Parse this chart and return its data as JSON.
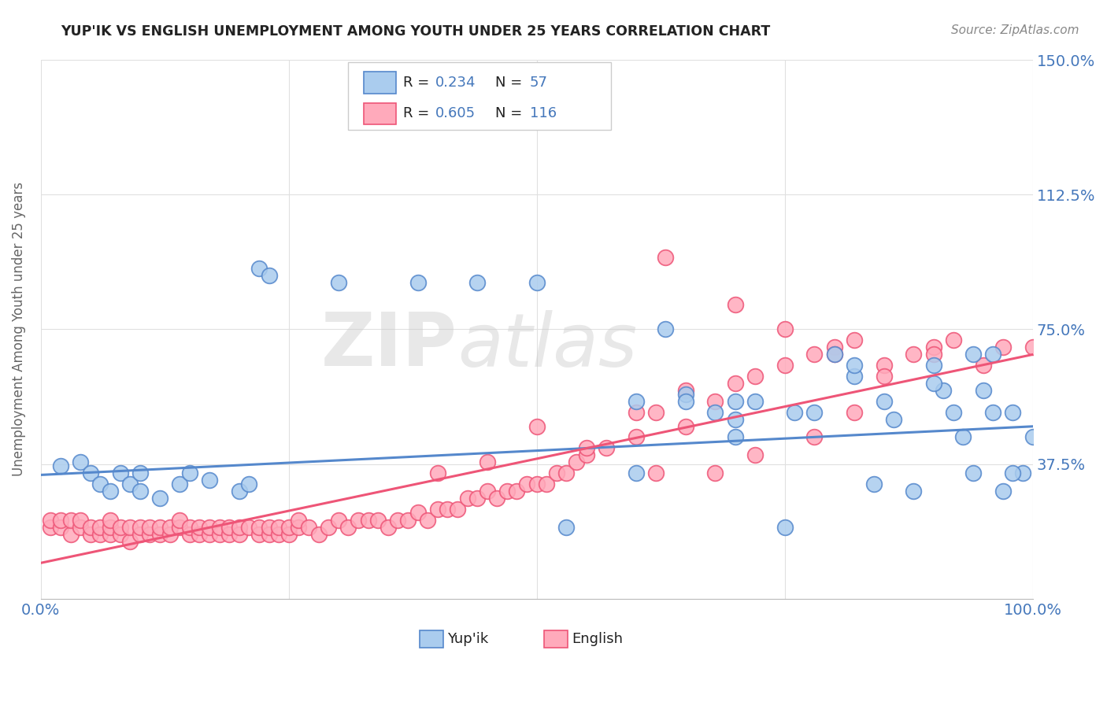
{
  "title": "YUP'IK VS ENGLISH UNEMPLOYMENT AMONG YOUTH UNDER 25 YEARS CORRELATION CHART",
  "source": "Source: ZipAtlas.com",
  "ylabel": "Unemployment Among Youth under 25 years",
  "xlim": [
    0.0,
    1.0
  ],
  "ylim": [
    0.0,
    1.5
  ],
  "xticks": [
    0.0,
    0.25,
    0.5,
    0.75,
    1.0
  ],
  "xtick_labels": [
    "0.0%",
    "",
    "",
    "",
    "100.0%"
  ],
  "ytick_labels": [
    "",
    "37.5%",
    "75.0%",
    "112.5%",
    "150.0%"
  ],
  "yticks": [
    0.0,
    0.375,
    0.75,
    1.125,
    1.5
  ],
  "blue_color": "#5588CC",
  "pink_color": "#EE5577",
  "blue_fill": "#AACCEE",
  "pink_fill": "#FFAABB",
  "legend_label_blue": "Yup'ik",
  "legend_label_pink": "English",
  "blue_R": "0.234",
  "blue_N": "57",
  "pink_R": "0.605",
  "pink_N": "116",
  "blue_scatter_x": [
    0.02,
    0.04,
    0.05,
    0.06,
    0.07,
    0.08,
    0.09,
    0.1,
    0.1,
    0.12,
    0.14,
    0.15,
    0.17,
    0.2,
    0.21,
    0.22,
    0.23,
    0.3,
    0.38,
    0.44,
    0.5,
    0.53,
    0.6,
    0.63,
    0.65,
    0.68,
    0.7,
    0.72,
    0.75,
    0.76,
    0.78,
    0.8,
    0.82,
    0.84,
    0.85,
    0.86,
    0.88,
    0.9,
    0.91,
    0.92,
    0.93,
    0.94,
    0.95,
    0.96,
    0.97,
    0.98,
    0.99,
    1.0,
    0.65,
    0.7,
    0.82,
    0.9,
    0.94,
    0.96,
    0.98,
    0.6,
    0.7
  ],
  "blue_scatter_y": [
    0.37,
    0.38,
    0.35,
    0.32,
    0.3,
    0.35,
    0.32,
    0.3,
    0.35,
    0.28,
    0.32,
    0.35,
    0.33,
    0.3,
    0.32,
    0.92,
    0.9,
    0.88,
    0.88,
    0.88,
    0.88,
    0.2,
    0.55,
    0.75,
    0.57,
    0.52,
    0.45,
    0.55,
    0.2,
    0.52,
    0.52,
    0.68,
    0.62,
    0.32,
    0.55,
    0.5,
    0.3,
    0.65,
    0.58,
    0.52,
    0.45,
    0.35,
    0.58,
    0.68,
    0.3,
    0.52,
    0.35,
    0.45,
    0.55,
    0.55,
    0.65,
    0.6,
    0.68,
    0.52,
    0.35,
    0.35,
    0.5
  ],
  "pink_scatter_x": [
    0.01,
    0.01,
    0.02,
    0.02,
    0.03,
    0.03,
    0.04,
    0.04,
    0.05,
    0.05,
    0.06,
    0.06,
    0.07,
    0.07,
    0.07,
    0.08,
    0.08,
    0.09,
    0.09,
    0.1,
    0.1,
    0.11,
    0.11,
    0.12,
    0.12,
    0.13,
    0.13,
    0.14,
    0.14,
    0.15,
    0.15,
    0.16,
    0.16,
    0.17,
    0.17,
    0.18,
    0.18,
    0.19,
    0.19,
    0.2,
    0.2,
    0.21,
    0.22,
    0.22,
    0.23,
    0.23,
    0.24,
    0.24,
    0.25,
    0.25,
    0.26,
    0.26,
    0.27,
    0.28,
    0.29,
    0.3,
    0.31,
    0.32,
    0.33,
    0.34,
    0.35,
    0.36,
    0.37,
    0.38,
    0.39,
    0.4,
    0.41,
    0.42,
    0.43,
    0.44,
    0.45,
    0.46,
    0.47,
    0.48,
    0.49,
    0.5,
    0.51,
    0.52,
    0.53,
    0.54,
    0.55,
    0.57,
    0.6,
    0.62,
    0.63,
    0.65,
    0.68,
    0.7,
    0.72,
    0.75,
    0.78,
    0.8,
    0.82,
    0.85,
    0.88,
    0.9,
    0.92,
    0.95,
    0.97,
    1.0,
    0.5,
    0.55,
    0.4,
    0.45,
    0.6,
    0.65,
    0.7,
    0.75,
    0.8,
    0.85,
    0.9,
    0.62,
    0.68,
    0.72,
    0.78,
    0.82
  ],
  "pink_scatter_y": [
    0.2,
    0.22,
    0.2,
    0.22,
    0.18,
    0.22,
    0.2,
    0.22,
    0.18,
    0.2,
    0.18,
    0.2,
    0.18,
    0.2,
    0.22,
    0.18,
    0.2,
    0.16,
    0.2,
    0.18,
    0.2,
    0.18,
    0.2,
    0.18,
    0.2,
    0.18,
    0.2,
    0.2,
    0.22,
    0.18,
    0.2,
    0.18,
    0.2,
    0.18,
    0.2,
    0.18,
    0.2,
    0.18,
    0.2,
    0.18,
    0.2,
    0.2,
    0.18,
    0.2,
    0.18,
    0.2,
    0.18,
    0.2,
    0.18,
    0.2,
    0.2,
    0.22,
    0.2,
    0.18,
    0.2,
    0.22,
    0.2,
    0.22,
    0.22,
    0.22,
    0.2,
    0.22,
    0.22,
    0.24,
    0.22,
    0.25,
    0.25,
    0.25,
    0.28,
    0.28,
    0.3,
    0.28,
    0.3,
    0.3,
    0.32,
    0.32,
    0.32,
    0.35,
    0.35,
    0.38,
    0.4,
    0.42,
    0.45,
    0.52,
    0.95,
    0.58,
    0.55,
    0.6,
    0.62,
    0.65,
    0.68,
    0.7,
    0.72,
    0.65,
    0.68,
    0.7,
    0.72,
    0.65,
    0.7,
    0.7,
    0.48,
    0.42,
    0.35,
    0.38,
    0.52,
    0.48,
    0.82,
    0.75,
    0.68,
    0.62,
    0.68,
    0.35,
    0.35,
    0.4,
    0.45,
    0.52
  ],
  "blue_line_x0": 0.0,
  "blue_line_y0": 0.345,
  "blue_line_x1": 1.0,
  "blue_line_y1": 0.48,
  "pink_line_x0": 0.0,
  "pink_line_y0": 0.1,
  "pink_line_x1": 1.0,
  "pink_line_y1": 0.68,
  "watermark_line1": "ZIP",
  "watermark_line2": "atlas",
  "background_color": "#ffffff",
  "grid_color": "#e0e0e0",
  "title_color": "#222222",
  "axis_label_color": "#4477BB",
  "ylabel_color": "#666666"
}
